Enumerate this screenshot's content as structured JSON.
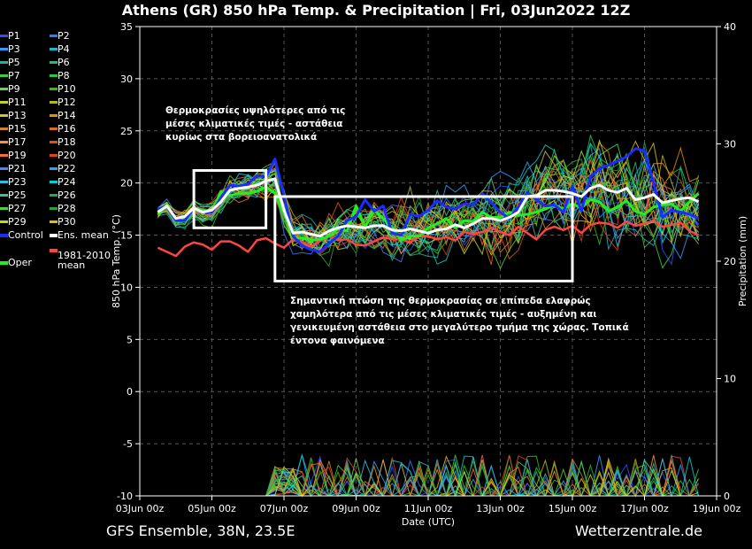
{
  "title": "Athens  (GR)  850 hPa Temp. & Precipitation | Fri, 03Jun2022 12Z",
  "footer_left": "GFS Ensemble, 38N, 23.5E",
  "footer_right": "Wetterzentrale.de",
  "annotations": {
    "top": [
      "Θερμοκρασίες υψηλότερες από τις",
      "μέσες κλιματικές τιμές - αστάθεια",
      "κυρίως στα βορειοανατολικά"
    ],
    "bottom": [
      "Σημαντική πτώση της θερμοκρασίας σε επίπεδα ελαφρώς",
      "χαμηλότερα από τις μέσες κλιματικές τιμές - αυξημένη και",
      "γενικευμένη αστάθεια στο μεγαλύτερο τμήμα της χώρας. Τοπικά",
      "έντονα φαινόμενα"
    ]
  },
  "legend": {
    "pairs": [
      [
        "P1",
        "P2"
      ],
      [
        "P3",
        "P4"
      ],
      [
        "P5",
        "P6"
      ],
      [
        "P7",
        "P8"
      ],
      [
        "P9",
        "P10"
      ],
      [
        "P11",
        "P12"
      ],
      [
        "P13",
        "P14"
      ],
      [
        "P15",
        "P16"
      ],
      [
        "P17",
        "P18"
      ],
      [
        "P19",
        "P20"
      ],
      [
        "P21",
        "P22"
      ],
      [
        "P23",
        "P24"
      ],
      [
        "P25",
        "P26"
      ],
      [
        "P27",
        "P28"
      ],
      [
        "P29",
        "P30"
      ]
    ],
    "control": "Control",
    "ens_mean": "Ens. mean",
    "clim_line1": "1981-2010",
    "clim_line2": "mean",
    "oper": "Oper"
  },
  "colors": {
    "members": [
      "#2f4cff",
      "#2d7bff",
      "#2f9cff",
      "#21b3c8",
      "#1db4a0",
      "#20c060",
      "#3bd03b",
      "#27c83b",
      "#66d34a",
      "#33c000",
      "#c8d020",
      "#b8b820",
      "#d0c040",
      "#e09000",
      "#d08030",
      "#e06a20",
      "#ff9040",
      "#e05020",
      "#ff6a30",
      "#e04020",
      "#4f80ff",
      "#2aa0ff",
      "#30c0e0",
      "#00d0d0",
      "#40c090",
      "#10b050",
      "#50d040",
      "#30a030",
      "#b0e020",
      "#e0c000"
    ],
    "control": "#1a2cff",
    "ens_mean": "#ffffff",
    "clim": "#ff4444",
    "oper": "#22ee22"
  },
  "chart_data": {
    "type": "line",
    "xlabel": "Date (UTC)",
    "ylabel": "850 hPa Temp. (°C)",
    "ylabel_right": "Precipitation (mm)",
    "x_ticks": [
      "03Jun 00z",
      "05Jun 00z",
      "07Jun 00z",
      "09Jun 00z",
      "11Jun 00z",
      "13Jun 00z",
      "15Jun 00z",
      "17Jun 00z",
      "19Jun 00z"
    ],
    "ylim": [
      -10,
      35
    ],
    "y_ticks": [
      -10,
      -5,
      0,
      5,
      10,
      15,
      20,
      25,
      30,
      35
    ],
    "ylim_right": [
      0,
      40
    ],
    "y_ticks_right": [
      0,
      10,
      20,
      30,
      40
    ],
    "grid": true,
    "hours_per_step": 6,
    "x_start_hour": 12,
    "series": [
      {
        "name": "Ens. mean",
        "values": [
          17.2,
          17.8,
          16.6,
          16.8,
          17.6,
          17.2,
          17.4,
          18.2,
          19.3,
          19.5,
          19.6,
          19.8,
          20.2,
          20.4,
          17.4,
          15.2,
          15.3,
          15.1,
          14.9,
          15.4,
          15.7,
          15.9,
          15.8,
          15.7,
          15.9,
          15.9,
          15.5,
          15.4,
          15.6,
          15.4,
          15.2,
          15.5,
          15.6,
          16.0,
          15.7,
          16.1,
          16.6,
          16.6,
          16.4,
          16.7,
          17.2,
          18.7,
          18.8,
          19.3,
          19.3,
          19.2,
          19.0,
          18.7,
          19.5,
          19.8,
          19.3,
          19.1,
          19.5,
          18.4,
          18.6,
          18.9,
          18.1,
          18.3,
          18.5,
          18.6,
          18.2
        ]
      },
      {
        "name": "Control",
        "values": [
          17.5,
          17.8,
          16.4,
          16.4,
          17.6,
          17.2,
          17.2,
          18.6,
          19.8,
          19.7,
          19.9,
          20.7,
          20.6,
          22.3,
          18.8,
          14.9,
          14.0,
          13.6,
          13.4,
          14.2,
          14.9,
          16.4,
          16.8,
          18.4,
          17.3,
          17.8,
          15.2,
          15.0,
          17.0,
          16.8,
          17.4,
          18.3,
          17.7,
          17.5,
          18.0,
          17.9,
          19.0,
          18.1,
          17.2,
          16.6,
          17.7,
          19.1,
          18.4,
          17.8,
          17.9,
          17.2,
          19.7,
          17.3,
          20.6,
          21.4,
          21.7,
          22.1,
          22.5,
          23.3,
          23.1,
          20.0,
          16.7,
          17.4,
          17.2,
          17.0,
          16.6
        ]
      },
      {
        "name": "Oper",
        "values": [
          17.0,
          17.9,
          16.3,
          16.4,
          17.6,
          17.4,
          17.2,
          19.2,
          18.8,
          19.0,
          19.0,
          19.2,
          19.6,
          19.0,
          17.1,
          14.8,
          14.7,
          14.5,
          14.6,
          14.9,
          15.6,
          15.4,
          17.8,
          15.8,
          17.4,
          16.6,
          15.7,
          14.5,
          14.9,
          14.9,
          15.7,
          16.1,
          16.6,
          15.7,
          16.4,
          16.3,
          17.2,
          16.7,
          16.7,
          17.2,
          16.9,
          17.0,
          17.2,
          17.5,
          17.9,
          17.5,
          18.0,
          17.6,
          18.4,
          18.2,
          17.3,
          17.7,
          18.3,
          17.3,
          17.0,
          17.7,
          17.9,
          18.0,
          17.3,
          18.2,
          19.0
        ]
      },
      {
        "name": "1981-2010 mean",
        "values": [
          13.8,
          13.4,
          13.0,
          13.9,
          14.3,
          14.1,
          13.6,
          14.4,
          14.4,
          14.0,
          13.4,
          14.5,
          14.7,
          14.2,
          13.8,
          14.6,
          14.3,
          13.9,
          14.5,
          14.9,
          14.5,
          14.6,
          14.1,
          14.0,
          14.4,
          14.8,
          14.6,
          14.6,
          14.3,
          14.9,
          14.9,
          14.6,
          14.8,
          14.5,
          15.3,
          15.1,
          15.3,
          15.7,
          15.3,
          15.0,
          15.8,
          15.2,
          14.6,
          15.5,
          15.8,
          15.5,
          15.9,
          15.2,
          16.0,
          16.2,
          16.1,
          15.7,
          16.3,
          15.9,
          16.1,
          16.4,
          15.8,
          16.0,
          16.2,
          15.4,
          15.0
        ]
      }
    ]
  }
}
